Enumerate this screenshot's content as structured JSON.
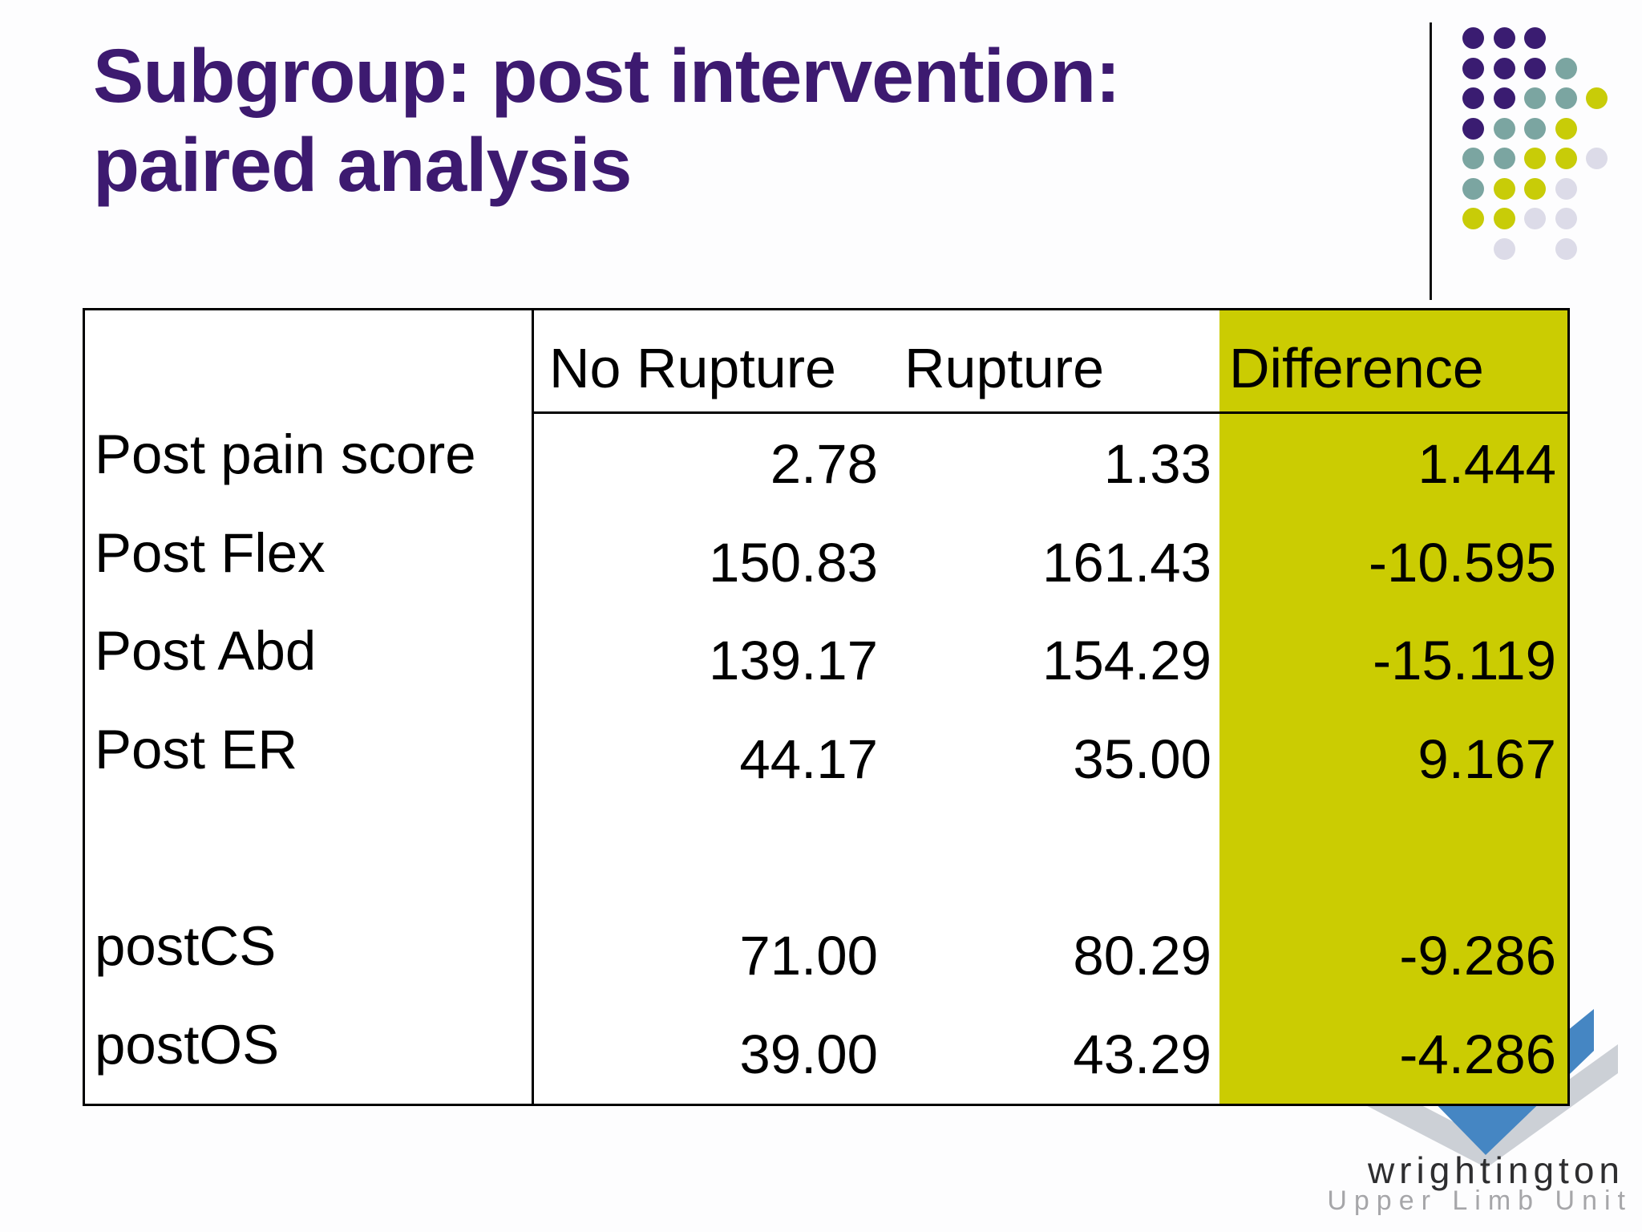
{
  "slide": {
    "title": "Subgroup: post intervention:\npaired analysis",
    "title_color": "#3d1a70",
    "background_color": "#fdfdfe"
  },
  "table": {
    "columns": [
      "",
      "No Rupture",
      "Rupture",
      "Difference"
    ],
    "highlight_color": "#cbcc02",
    "border_color": "#000000",
    "rows": [
      {
        "label": "Post pain score",
        "no_rupture": "2.78",
        "rupture": "1.33",
        "difference": "1.444"
      },
      {
        "label": "Post Flex",
        "no_rupture": "150.83",
        "rupture": "161.43",
        "difference": "-10.595"
      },
      {
        "label": "Post Abd",
        "no_rupture": "139.17",
        "rupture": "154.29",
        "difference": "-15.119"
      },
      {
        "label": "Post ER",
        "no_rupture": "44.17",
        "rupture": "35.00",
        "difference": "9.167"
      },
      {
        "label": "",
        "no_rupture": "",
        "rupture": "",
        "difference": ""
      },
      {
        "label": "postCS",
        "no_rupture": "71.00",
        "rupture": "80.29",
        "difference": "-9.286"
      },
      {
        "label": "postOS",
        "no_rupture": "39.00",
        "rupture": "43.29",
        "difference": "-4.286"
      }
    ]
  },
  "logo": {
    "dot_colors": {
      "P": "#3a1c71",
      "T": "#7ba5a1",
      "Y": "#c8cc08",
      "L": "#dcdbe8"
    },
    "dot_grid": [
      "PPP..",
      "PPPT.",
      "PPTTY",
      "PTTY.",
      "TTYYL",
      "TYYL.",
      "YYLL.",
      ".L.L."
    ],
    "bird_blue": "#4586c3",
    "bird_gray": "#ccd0d6",
    "brand": "wrightington",
    "brand_sub": "Upper Limb Unit"
  }
}
